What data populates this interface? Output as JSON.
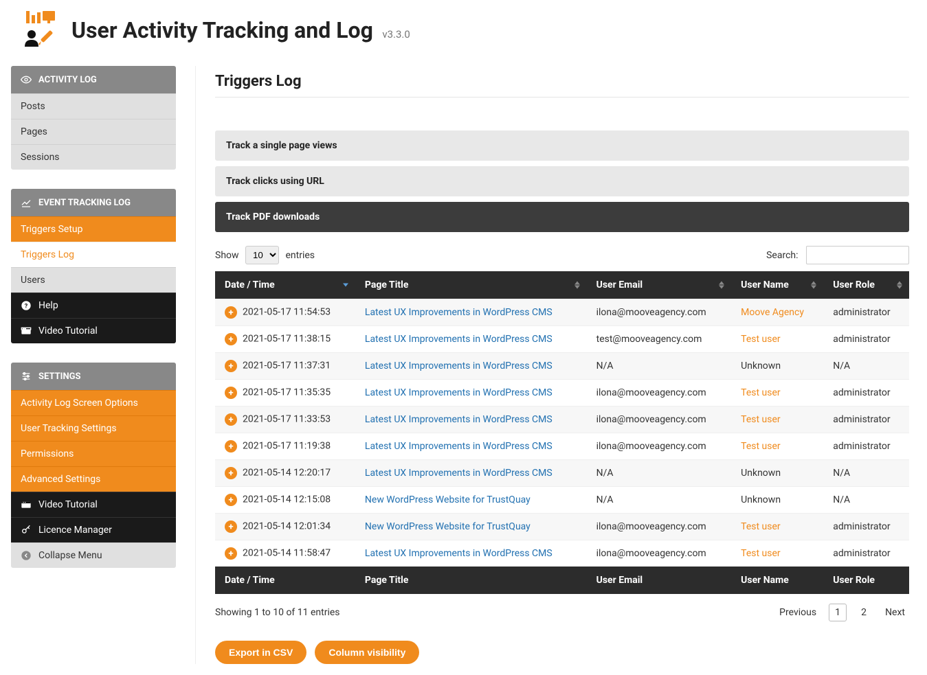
{
  "header": {
    "title": "User Activity Tracking and Log",
    "version": "v3.3.0"
  },
  "colors": {
    "orange": "#f08b1d",
    "dark": "#2c2c2c",
    "grey_header": "#888888",
    "link_blue": "#2271b1"
  },
  "sidebar": {
    "section1": {
      "header": "ACTIVITY LOG",
      "items": [
        {
          "label": "Posts"
        },
        {
          "label": "Pages"
        },
        {
          "label": "Sessions"
        }
      ]
    },
    "section2": {
      "header": "EVENT TRACKING LOG",
      "items": [
        {
          "label": "Triggers Setup",
          "style": "orange"
        },
        {
          "label": "Triggers Log",
          "style": "active-white"
        },
        {
          "label": "Users",
          "style": "grey"
        },
        {
          "label": "Help",
          "style": "dark",
          "icon": "question"
        },
        {
          "label": "Video Tutorial",
          "style": "dark",
          "icon": "video"
        }
      ]
    },
    "section3": {
      "header": "SETTINGS",
      "items": [
        {
          "label": "Activity Log Screen Options",
          "style": "orange"
        },
        {
          "label": "User Tracking Settings",
          "style": "orange"
        },
        {
          "label": "Permissions",
          "style": "orange"
        },
        {
          "label": "Advanced Settings",
          "style": "orange"
        },
        {
          "label": "Video Tutorial",
          "style": "dark",
          "icon": "video"
        },
        {
          "label": "Licence Manager",
          "style": "dark",
          "icon": "key"
        },
        {
          "label": "Collapse Menu",
          "style": "grey",
          "icon": "collapse"
        }
      ]
    }
  },
  "content": {
    "title": "Triggers Log",
    "accordions": [
      {
        "label": "Track a single page views",
        "style": "light"
      },
      {
        "label": "Track clicks using URL",
        "style": "light"
      },
      {
        "label": "Track PDF downloads",
        "style": "dark"
      }
    ],
    "show_label": "Show",
    "entries_label": "entries",
    "page_size": "10",
    "search_label": "Search:",
    "search_value": "",
    "columns": [
      "Date / Time",
      "Page Title",
      "User Email",
      "User Name",
      "User Role"
    ],
    "sort_column": 0,
    "sort_dir": "desc",
    "rows": [
      {
        "datetime": "2021-05-17 11:54:53",
        "page": "Latest UX Improvements in WordPress CMS",
        "email": "ilona@mooveagency.com",
        "user": "Moove Agency",
        "user_link": true,
        "role": "administrator"
      },
      {
        "datetime": "2021-05-17 11:38:15",
        "page": "Latest UX Improvements in WordPress CMS",
        "email": "test@mooveagency.com",
        "user": "Test user",
        "user_link": true,
        "role": "administrator"
      },
      {
        "datetime": "2021-05-17 11:37:31",
        "page": "Latest UX Improvements in WordPress CMS",
        "email": "N/A",
        "user": "Unknown",
        "user_link": false,
        "role": "N/A"
      },
      {
        "datetime": "2021-05-17 11:35:35",
        "page": "Latest UX Improvements in WordPress CMS",
        "email": "ilona@mooveagency.com",
        "user": "Test user",
        "user_link": true,
        "role": "administrator"
      },
      {
        "datetime": "2021-05-17 11:33:53",
        "page": "Latest UX Improvements in WordPress CMS",
        "email": "ilona@mooveagency.com",
        "user": "Test user",
        "user_link": true,
        "role": "administrator"
      },
      {
        "datetime": "2021-05-17 11:19:38",
        "page": "Latest UX Improvements in WordPress CMS",
        "email": "ilona@mooveagency.com",
        "user": "Test user",
        "user_link": true,
        "role": "administrator"
      },
      {
        "datetime": "2021-05-14 12:20:17",
        "page": "Latest UX Improvements in WordPress CMS",
        "email": "N/A",
        "user": "Unknown",
        "user_link": false,
        "role": "N/A"
      },
      {
        "datetime": "2021-05-14 12:15:08",
        "page": "New WordPress Website for TrustQuay",
        "email": "N/A",
        "user": "Unknown",
        "user_link": false,
        "role": "N/A"
      },
      {
        "datetime": "2021-05-14 12:01:34",
        "page": "New WordPress Website for TrustQuay",
        "email": "ilona@mooveagency.com",
        "user": "Test user",
        "user_link": true,
        "role": "administrator"
      },
      {
        "datetime": "2021-05-14 11:58:47",
        "page": "Latest UX Improvements in WordPress CMS",
        "email": "ilona@mooveagency.com",
        "user": "Test user",
        "user_link": true,
        "role": "administrator"
      }
    ],
    "info": "Showing 1 to 10 of 11 entries",
    "pagination": {
      "previous": "Previous",
      "next": "Next",
      "pages": [
        "1",
        "2"
      ],
      "current": "1"
    },
    "buttons": {
      "export": "Export in CSV",
      "colvis": "Column visibility"
    }
  }
}
